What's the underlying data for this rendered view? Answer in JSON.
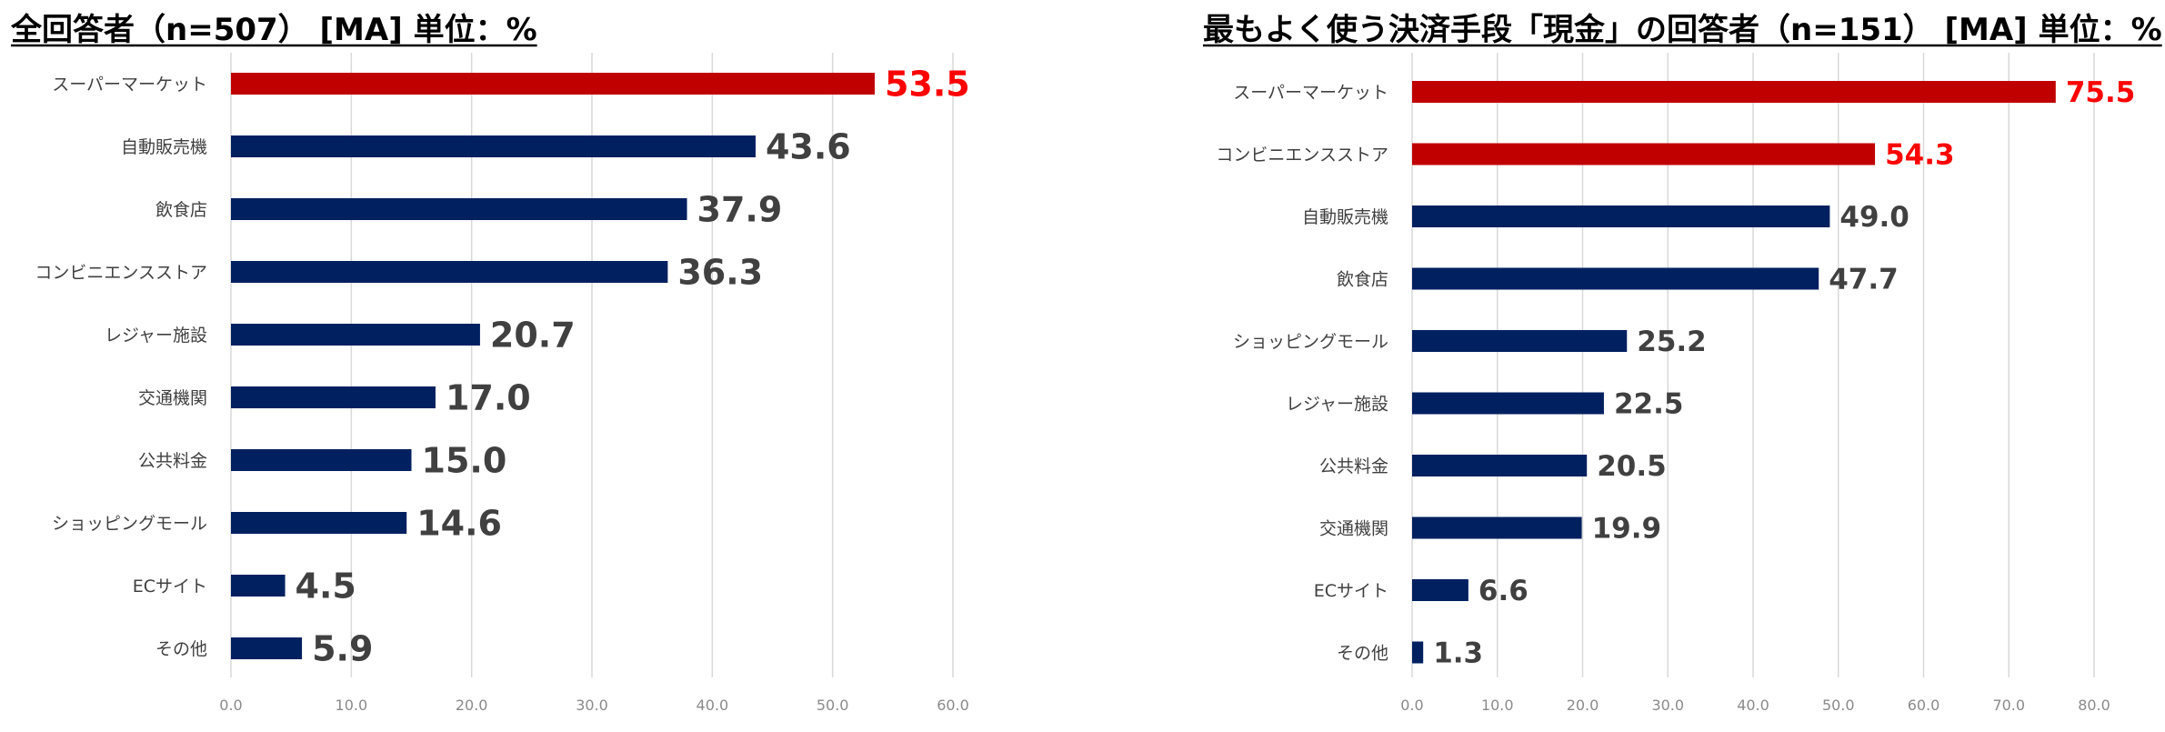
{
  "colors": {
    "highlight": "#C00000",
    "default": "#002060",
    "label_default": "#404040",
    "label_highlight": "#FF0000"
  },
  "chart_data": [
    {
      "type": "bar",
      "orientation": "horizontal",
      "title": "全回答者（n=507） [MA] 単位：%",
      "categories": [
        "スーパーマーケット",
        "自動販売機",
        "飲食店",
        "コンビニエンスストア",
        "レジャー施設",
        "交通機関",
        "公共料金",
        "ショッピングモール",
        "ECサイト",
        "その他"
      ],
      "values": [
        53.5,
        43.6,
        37.9,
        36.3,
        20.7,
        17.0,
        15.0,
        14.6,
        4.5,
        5.9
      ],
      "value_labels": [
        "53.5",
        "43.6",
        "37.9",
        "36.3",
        "20.7",
        "17.0",
        "15.0",
        "14.6",
        "4.5",
        "5.9"
      ],
      "highlighted": [
        true,
        false,
        false,
        false,
        false,
        false,
        false,
        false,
        false,
        false
      ],
      "xlim": [
        0,
        60
      ],
      "xticks": [
        "0.0",
        "10.0",
        "20.0",
        "30.0",
        "40.0",
        "50.0",
        "60.0"
      ],
      "grid": true,
      "legend": "none"
    },
    {
      "type": "bar",
      "orientation": "horizontal",
      "title": "最もよく使う決済手段「現金」の回答者（n=151） [MA] 単位：%",
      "categories": [
        "スーパーマーケット",
        "コンビニエンスストア",
        "自動販売機",
        "飲食店",
        "ショッピングモール",
        "レジャー施設",
        "公共料金",
        "交通機関",
        "ECサイト",
        "その他"
      ],
      "values": [
        75.5,
        54.3,
        49.0,
        47.7,
        25.2,
        22.5,
        20.5,
        19.9,
        6.6,
        1.3
      ],
      "value_labels": [
        "75.5",
        "54.3",
        "49.0",
        "47.7",
        "25.2",
        "22.5",
        "20.5",
        "19.9",
        "6.6",
        "1.3"
      ],
      "highlighted": [
        true,
        true,
        false,
        false,
        false,
        false,
        false,
        false,
        false,
        false
      ],
      "xlim": [
        0,
        80
      ],
      "xticks": [
        "0.0",
        "10.0",
        "20.0",
        "30.0",
        "40.0",
        "50.0",
        "60.0",
        "70.0",
        "80.0"
      ],
      "grid": true,
      "legend": "none"
    }
  ]
}
